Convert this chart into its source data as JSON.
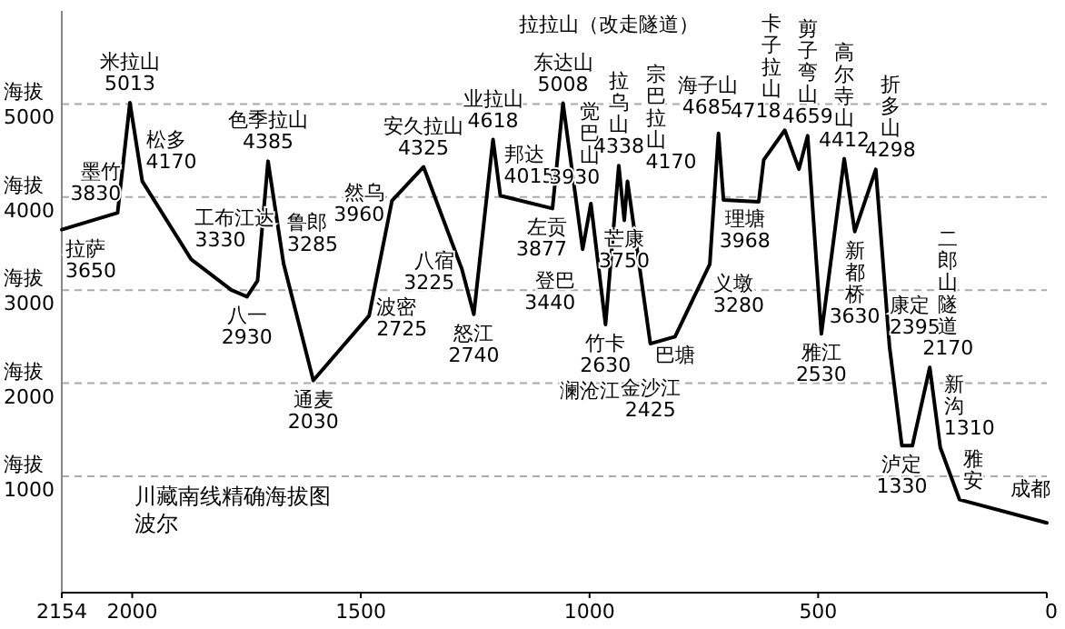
{
  "chart_data": {
    "type": "line",
    "xlim": [
      2154,
      0
    ],
    "xticks": [
      2154,
      2000,
      1500,
      1000,
      500,
      0
    ],
    "ylim": [
      -250,
      6000
    ],
    "yticks": [
      1000,
      2000,
      3000,
      4000,
      5000
    ],
    "ylabel": "海拔",
    "grid": "y",
    "marker": "none",
    "line_style": "solid",
    "series": [
      {
        "color": "#000000",
        "x": [
          2154,
          2032,
          2005,
          1978,
          1871,
          1783,
          1749,
          1726,
          1703,
          1669,
          1604,
          1482,
          1432,
          1363,
          1279,
          1253,
          1211,
          1195,
          1081,
          1058,
          1015,
          997,
          965,
          936,
          924,
          917,
          867,
          813,
          737,
          718,
          707,
          630,
          619,
          573,
          542,
          523,
          493,
          443,
          420,
          374,
          344,
          317,
          294,
          256,
          233,
          191,
          0
        ],
        "values": [
          3650,
          3830,
          5013,
          4170,
          3330,
          3000,
          2930,
          3100,
          4385,
          3285,
          2030,
          2725,
          3960,
          4325,
          3225,
          2740,
          4618,
          4015,
          3877,
          5008,
          3440,
          3930,
          2630,
          4338,
          3750,
          4170,
          2425,
          2500,
          3280,
          4685,
          3968,
          3950,
          4400,
          4718,
          4300,
          4659,
          2530,
          4412,
          3630,
          4298,
          2395,
          1330,
          1330,
          2170,
          1310,
          750,
          500
        ]
      }
    ],
    "annotations": [
      {
        "text": "拉萨\n3650",
        "x": 2154,
        "y": 3650
      },
      {
        "text": "墨竹\n3830",
        "x": 2032,
        "y": 3830
      },
      {
        "text": "米拉山\n5013",
        "x": 2005,
        "y": 5013
      },
      {
        "text": "松多\n4170",
        "x": 1978,
        "y": 4170
      },
      {
        "text": "工布江达\n3330",
        "x": 1871,
        "y": 3330
      },
      {
        "text": "八一\n2930",
        "x": 1749,
        "y": 2930
      },
      {
        "text": "色季拉山\n4385",
        "x": 1703,
        "y": 4385
      },
      {
        "text": "鲁郎\n3285",
        "x": 1669,
        "y": 3285
      },
      {
        "text": "通麦\n2030",
        "x": 1604,
        "y": 2030
      },
      {
        "text": "波密\n2725",
        "x": 1482,
        "y": 2725
      },
      {
        "text": "然乌\n3960",
        "x": 1432,
        "y": 3960
      },
      {
        "text": "安久拉山\n4325",
        "x": 1363,
        "y": 4325
      },
      {
        "text": "八宿\n3225",
        "x": 1279,
        "y": 3225
      },
      {
        "text": "怒江\n2740",
        "x": 1253,
        "y": 2740
      },
      {
        "text": "业拉山\n4618",
        "x": 1211,
        "y": 4618
      },
      {
        "text": "邦达\n4015",
        "x": 1195,
        "y": 4015
      },
      {
        "text": "左贡\n3877",
        "x": 1081,
        "y": 3877
      },
      {
        "text": "东达山\n5008",
        "x": 1058,
        "y": 5008
      },
      {
        "text": "登巴\n3440",
        "x": 1015,
        "y": 3440
      },
      {
        "text": "觉巴山\n3930",
        "x": 997,
        "y": 3930
      },
      {
        "text": "竹卡\n2630",
        "x": 965,
        "y": 2630
      },
      {
        "text": "澜沧江",
        "x": 965,
        "y": 2630
      },
      {
        "text": "拉乌山\n4338",
        "x": 936,
        "y": 4338
      },
      {
        "text": "芒康\n3750",
        "x": 924,
        "y": 3750
      },
      {
        "text": "宗巴拉山\n4170",
        "x": 917,
        "y": 4170
      },
      "拉拉山（改走隧道）",
      {
        "text": "巴塘",
        "x": 813,
        "y": 2500
      },
      {
        "text": "金沙江\n2425",
        "x": 867,
        "y": 2425
      },
      {
        "text": "义墩\n3280",
        "x": 737,
        "y": 3280
      },
      {
        "text": "海子山\n4685",
        "x": 718,
        "y": 4685
      },
      {
        "text": "理塘\n3968",
        "x": 660,
        "y": 3968
      },
      {
        "text": "卡子拉山\n4718",
        "x": 573,
        "y": 4718
      },
      {
        "text": "剪子弯山\n4659",
        "x": 523,
        "y": 4659
      },
      {
        "text": "雅江\n2530",
        "x": 493,
        "y": 2530
      },
      {
        "text": "高尔寺山\n4412",
        "x": 443,
        "y": 4412
      },
      {
        "text": "新都桥\n3630",
        "x": 420,
        "y": 3630
      },
      {
        "text": "折多山\n4298",
        "x": 374,
        "y": 4298
      },
      {
        "text": "康定\n2395",
        "x": 344,
        "y": 2395
      },
      {
        "text": "泸定\n1330",
        "x": 317,
        "y": 1330
      },
      {
        "text": "二郎山隧道\n2170",
        "x": 256,
        "y": 2170
      },
      {
        "text": "新沟\n1310",
        "x": 233,
        "y": 1310
      },
      {
        "text": "雅安",
        "x": 191,
        "y": 750
      },
      {
        "text": "成都",
        "x": 0,
        "y": 500
      },
      "川藏南线精确海拔图",
      "波尔"
    ]
  }
}
